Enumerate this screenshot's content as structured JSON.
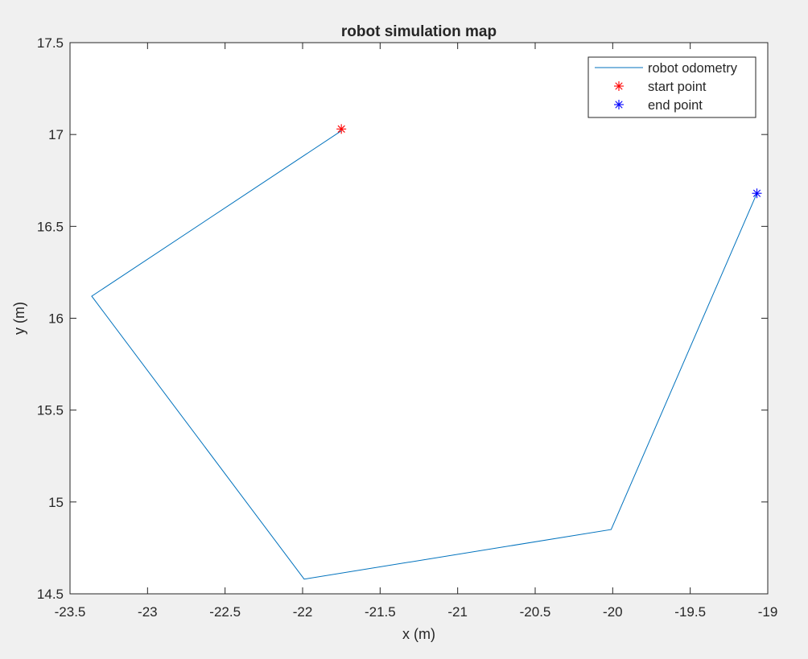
{
  "chart_data": {
    "type": "line",
    "title": "robot simulation map",
    "xlabel": "x (m)",
    "ylabel": "y (m)",
    "xlim": [
      -23.5,
      -19
    ],
    "ylim": [
      14.5,
      17.5
    ],
    "xticks": [
      -23.5,
      -23,
      -22.5,
      -22,
      -21.5,
      -21,
      -20.5,
      -20,
      -19.5,
      -19
    ],
    "yticks": [
      14.5,
      15,
      15.5,
      16,
      16.5,
      17,
      17.5
    ],
    "xtick_labels": [
      "-23.5",
      "-23",
      "-22.5",
      "-22",
      "-21.5",
      "-21",
      "-20.5",
      "-20",
      "-19.5",
      "-19"
    ],
    "ytick_labels": [
      "14.5",
      "15",
      "15.5",
      "16",
      "16.5",
      "17",
      "17.5"
    ],
    "grid": false,
    "legend_position": "top-right",
    "series": [
      {
        "name": "robot odometry",
        "kind": "line",
        "color": "#0072BD",
        "x": [
          -21.75,
          -23.36,
          -21.99,
          -20.01,
          -19.07
        ],
        "y": [
          17.02,
          16.12,
          14.58,
          14.85,
          16.68
        ]
      },
      {
        "name": "start point",
        "kind": "marker",
        "marker": "asterisk",
        "color": "#FF0000",
        "x": [
          -21.75
        ],
        "y": [
          17.03
        ]
      },
      {
        "name": "end point",
        "kind": "marker",
        "marker": "asterisk",
        "color": "#0000FF",
        "x": [
          -19.07
        ],
        "y": [
          16.68
        ]
      }
    ]
  }
}
